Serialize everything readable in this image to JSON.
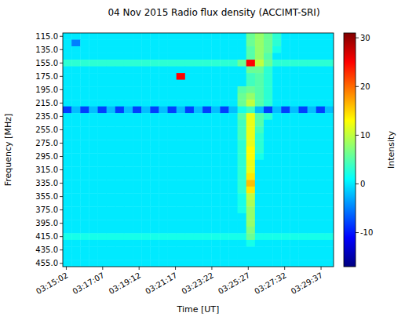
{
  "chart_data": {
    "type": "heatmap",
    "title": "04 Nov 2015 Radio flux density (ACCIMT-SRI)",
    "x_label": "Time [UT]",
    "y_label": "Frequency [MHz]",
    "xlim": [
      11690,
      12620
    ],
    "ylim": [
      460,
      110
    ],
    "xticks": [
      {
        "value": 11702,
        "label": "03:15:02"
      },
      {
        "value": 11827,
        "label": "03:17:07"
      },
      {
        "value": 11952,
        "label": "03:19:12"
      },
      {
        "value": 12077,
        "label": "03:21:17"
      },
      {
        "value": 12202,
        "label": "03:23:22"
      },
      {
        "value": 12327,
        "label": "03:25:27"
      },
      {
        "value": 12452,
        "label": "03:27:32"
      },
      {
        "value": 12577,
        "label": "03:29:37"
      }
    ],
    "yticks": [
      {
        "value": 115,
        "label": "115.0"
      },
      {
        "value": 135,
        "label": "135.0"
      },
      {
        "value": 155,
        "label": "155.0"
      },
      {
        "value": 175,
        "label": "175.0"
      },
      {
        "value": 195,
        "label": "195.0"
      },
      {
        "value": 215,
        "label": "215.0"
      },
      {
        "value": 235,
        "label": "235.0"
      },
      {
        "value": 255,
        "label": "255.0"
      },
      {
        "value": 275,
        "label": "275.0"
      },
      {
        "value": 295,
        "label": "295.0"
      },
      {
        "value": 315,
        "label": "315.0"
      },
      {
        "value": 335,
        "label": "335.0"
      },
      {
        "value": 355,
        "label": "355.0"
      },
      {
        "value": 375,
        "label": "375.0"
      },
      {
        "value": 395,
        "label": "395.0"
      },
      {
        "value": 415,
        "label": "415.0"
      },
      {
        "value": 435,
        "label": "435.0"
      },
      {
        "value": 455,
        "label": "455.0"
      }
    ],
    "x_bins": [
      11690,
      11720,
      11750,
      11780,
      11810,
      11840,
      11870,
      11900,
      11930,
      11960,
      11990,
      12020,
      12050,
      12080,
      12110,
      12140,
      12170,
      12200,
      12230,
      12260,
      12290,
      12320,
      12350,
      12380,
      12410,
      12440,
      12470,
      12500,
      12530,
      12560,
      12590,
      12620
    ],
    "y_bins": [
      110,
      120,
      130,
      140,
      150,
      160,
      170,
      180,
      190,
      200,
      210,
      220,
      230,
      240,
      250,
      260,
      270,
      280,
      290,
      300,
      310,
      320,
      330,
      340,
      350,
      360,
      370,
      380,
      390,
      400,
      410,
      420,
      430,
      440,
      450,
      460
    ],
    "z": [
      [
        0,
        0,
        0,
        0,
        0,
        0,
        0,
        0,
        0,
        0,
        0,
        0,
        0,
        0,
        0,
        0,
        0,
        0,
        0,
        0,
        0,
        6,
        8,
        6,
        3,
        0,
        0,
        0,
        0,
        0,
        0
      ],
      [
        0,
        -5,
        0,
        0,
        0,
        0,
        0,
        0,
        0,
        0,
        0,
        0,
        0,
        0,
        0,
        0,
        0,
        0,
        0,
        0,
        0,
        6,
        8,
        6,
        3,
        0,
        0,
        0,
        0,
        0,
        0
      ],
      [
        0,
        0,
        0,
        0,
        0,
        0,
        0,
        0,
        0,
        0,
        0,
        0,
        0,
        0,
        0,
        0,
        0,
        0,
        0,
        0,
        0,
        5,
        8,
        6,
        2,
        0,
        0,
        0,
        0,
        0,
        0
      ],
      [
        0,
        0,
        0,
        0,
        0,
        0,
        0,
        0,
        0,
        0,
        0,
        0,
        0,
        0,
        0,
        0,
        0,
        0,
        0,
        0,
        0,
        5,
        8,
        5,
        0,
        0,
        0,
        0,
        0,
        0,
        0
      ],
      [
        3,
        3,
        3,
        3,
        3,
        3,
        3,
        3,
        3,
        3,
        3,
        3,
        3,
        3,
        3,
        3,
        3,
        3,
        3,
        3,
        6,
        25,
        10,
        6,
        3,
        3,
        3,
        3,
        3,
        3,
        3
      ],
      [
        0,
        0,
        0,
        0,
        0,
        0,
        0,
        0,
        0,
        0,
        0,
        0,
        0,
        0,
        0,
        0,
        0,
        0,
        0,
        0,
        0,
        6,
        6,
        3,
        0,
        0,
        0,
        0,
        0,
        0,
        0
      ],
      [
        0,
        0,
        0,
        0,
        0,
        0,
        0,
        0,
        0,
        0,
        0,
        0,
        0,
        25,
        0,
        0,
        0,
        0,
        0,
        0,
        0,
        4,
        5,
        3,
        0,
        0,
        0,
        0,
        0,
        0,
        0
      ],
      [
        0,
        0,
        0,
        0,
        0,
        0,
        0,
        0,
        0,
        0,
        0,
        0,
        0,
        0,
        0,
        0,
        0,
        0,
        0,
        0,
        0,
        4,
        5,
        3,
        0,
        0,
        0,
        0,
        0,
        0,
        0
      ],
      [
        0,
        0,
        0,
        0,
        0,
        0,
        0,
        0,
        0,
        0,
        0,
        0,
        0,
        0,
        0,
        0,
        0,
        0,
        0,
        0,
        5,
        6,
        5,
        3,
        0,
        0,
        0,
        0,
        0,
        0,
        0
      ],
      [
        0,
        0,
        0,
        0,
        0,
        0,
        0,
        0,
        0,
        0,
        0,
        0,
        0,
        0,
        0,
        0,
        0,
        0,
        0,
        0,
        6,
        8,
        5,
        3,
        0,
        0,
        0,
        0,
        0,
        0,
        0
      ],
      [
        0,
        0,
        0,
        0,
        0,
        0,
        0,
        0,
        0,
        0,
        0,
        0,
        0,
        0,
        0,
        0,
        0,
        0,
        0,
        0,
        6,
        10,
        5,
        3,
        0,
        0,
        0,
        0,
        0,
        0,
        0
      ],
      [
        -8,
        -2,
        -8,
        -2,
        -8,
        -2,
        -8,
        -2,
        -8,
        -2,
        -8,
        -2,
        -8,
        -2,
        -8,
        -2,
        -8,
        -2,
        -8,
        -2,
        2,
        4,
        -2,
        -8,
        -2,
        -8,
        -2,
        -8,
        -2,
        -8,
        -2
      ],
      [
        0,
        0,
        0,
        0,
        0,
        0,
        0,
        0,
        0,
        0,
        0,
        0,
        0,
        0,
        0,
        0,
        0,
        0,
        0,
        0,
        5,
        12,
        5,
        3,
        0,
        0,
        0,
        0,
        0,
        0,
        0
      ],
      [
        0,
        0,
        0,
        0,
        0,
        0,
        0,
        0,
        0,
        0,
        0,
        0,
        0,
        0,
        0,
        0,
        0,
        0,
        0,
        0,
        4,
        12,
        5,
        0,
        0,
        0,
        0,
        0,
        0,
        0,
        0
      ],
      [
        0,
        0,
        0,
        0,
        0,
        0,
        0,
        0,
        0,
        0,
        0,
        0,
        0,
        0,
        0,
        0,
        0,
        0,
        0,
        0,
        4,
        12,
        4,
        0,
        0,
        0,
        0,
        0,
        0,
        0,
        0
      ],
      [
        0,
        0,
        0,
        0,
        0,
        0,
        0,
        0,
        0,
        0,
        0,
        0,
        0,
        0,
        0,
        0,
        0,
        0,
        0,
        0,
        4,
        12,
        3,
        0,
        0,
        0,
        0,
        0,
        0,
        0,
        0
      ],
      [
        0,
        0,
        0,
        0,
        0,
        0,
        0,
        0,
        0,
        0,
        0,
        0,
        0,
        0,
        0,
        0,
        0,
        0,
        0,
        0,
        3,
        12,
        3,
        0,
        0,
        0,
        0,
        0,
        0,
        0,
        0
      ],
      [
        0,
        0,
        0,
        0,
        0,
        0,
        0,
        0,
        0,
        0,
        0,
        0,
        0,
        0,
        0,
        0,
        0,
        0,
        0,
        0,
        3,
        13,
        3,
        0,
        0,
        0,
        0,
        0,
        0,
        0,
        0
      ],
      [
        0,
        0,
        0,
        0,
        0,
        0,
        0,
        0,
        0,
        0,
        0,
        0,
        0,
        0,
        0,
        0,
        0,
        0,
        0,
        0,
        3,
        13,
        2,
        0,
        0,
        0,
        0,
        0,
        0,
        0,
        0
      ],
      [
        0,
        0,
        0,
        0,
        0,
        0,
        0,
        0,
        0,
        0,
        0,
        0,
        0,
        0,
        0,
        0,
        0,
        0,
        0,
        0,
        3,
        12,
        0,
        0,
        0,
        0,
        0,
        0,
        0,
        0,
        0
      ],
      [
        0,
        0,
        0,
        0,
        0,
        0,
        0,
        0,
        0,
        0,
        0,
        0,
        0,
        0,
        0,
        0,
        0,
        0,
        0,
        0,
        3,
        12,
        0,
        0,
        0,
        0,
        0,
        0,
        0,
        0,
        0
      ],
      [
        0,
        0,
        0,
        0,
        0,
        0,
        0,
        0,
        0,
        0,
        0,
        0,
        0,
        0,
        0,
        0,
        0,
        0,
        0,
        0,
        3,
        14,
        0,
        0,
        0,
        0,
        0,
        0,
        0,
        0,
        0
      ],
      [
        0,
        0,
        0,
        0,
        0,
        0,
        0,
        0,
        0,
        0,
        0,
        0,
        0,
        0,
        0,
        0,
        0,
        0,
        0,
        0,
        3,
        16,
        0,
        0,
        0,
        0,
        0,
        0,
        0,
        0,
        0
      ],
      [
        0,
        0,
        0,
        0,
        0,
        0,
        0,
        0,
        0,
        0,
        0,
        0,
        0,
        0,
        0,
        0,
        0,
        0,
        0,
        0,
        3,
        14,
        0,
        0,
        0,
        0,
        0,
        0,
        0,
        0,
        0
      ],
      [
        0,
        0,
        0,
        0,
        0,
        0,
        0,
        0,
        0,
        0,
        0,
        0,
        0,
        0,
        0,
        0,
        0,
        0,
        0,
        0,
        2,
        10,
        0,
        0,
        0,
        0,
        0,
        0,
        0,
        0,
        0
      ],
      [
        0,
        0,
        0,
        0,
        0,
        0,
        0,
        0,
        0,
        0,
        0,
        0,
        0,
        0,
        0,
        0,
        0,
        0,
        0,
        0,
        2,
        9,
        0,
        0,
        0,
        0,
        0,
        0,
        0,
        0,
        0
      ],
      [
        0,
        0,
        0,
        0,
        0,
        0,
        0,
        0,
        0,
        0,
        0,
        0,
        0,
        0,
        0,
        0,
        0,
        0,
        0,
        0,
        2,
        8,
        0,
        0,
        0,
        0,
        0,
        0,
        0,
        0,
        0
      ],
      [
        0,
        0,
        0,
        0,
        0,
        0,
        0,
        0,
        0,
        0,
        0,
        0,
        0,
        0,
        0,
        0,
        0,
        0,
        0,
        0,
        0,
        8,
        0,
        0,
        0,
        0,
        0,
        0,
        0,
        0,
        0
      ],
      [
        0,
        0,
        0,
        0,
        0,
        0,
        0,
        0,
        0,
        0,
        0,
        0,
        0,
        0,
        0,
        0,
        0,
        0,
        0,
        0,
        0,
        8,
        0,
        0,
        0,
        0,
        0,
        0,
        0,
        0,
        0
      ],
      [
        0,
        0,
        0,
        0,
        0,
        0,
        0,
        0,
        0,
        0,
        0,
        0,
        0,
        0,
        0,
        0,
        0,
        0,
        0,
        0,
        0,
        7,
        0,
        0,
        0,
        0,
        0,
        0,
        0,
        0,
        0
      ],
      [
        2,
        2,
        2,
        2,
        2,
        2,
        2,
        2,
        2,
        2,
        2,
        2,
        2,
        2,
        2,
        2,
        2,
        2,
        2,
        2,
        2,
        6,
        2,
        2,
        2,
        2,
        2,
        2,
        2,
        2,
        2
      ],
      [
        0,
        0,
        0,
        0,
        0,
        0,
        0,
        0,
        0,
        0,
        0,
        0,
        0,
        0,
        0,
        0,
        0,
        0,
        0,
        0,
        0,
        2,
        0,
        0,
        0,
        0,
        0,
        0,
        0,
        0,
        0
      ],
      [
        0,
        0,
        0,
        0,
        0,
        0,
        0,
        0,
        0,
        0,
        0,
        0,
        0,
        0,
        0,
        0,
        0,
        0,
        0,
        0,
        0,
        0,
        0,
        0,
        0,
        0,
        0,
        0,
        0,
        0,
        0
      ],
      [
        0,
        0,
        0,
        0,
        0,
        0,
        0,
        0,
        0,
        0,
        0,
        0,
        0,
        0,
        0,
        0,
        0,
        0,
        0,
        0,
        0,
        0,
        0,
        0,
        0,
        0,
        0,
        0,
        0,
        0,
        0
      ],
      [
        0,
        0,
        0,
        0,
        0,
        0,
        0,
        0,
        0,
        0,
        0,
        0,
        0,
        0,
        0,
        0,
        0,
        0,
        0,
        0,
        0,
        0,
        0,
        0,
        0,
        0,
        0,
        0,
        0,
        0,
        0
      ]
    ],
    "colorbar": {
      "range": [
        -17,
        31
      ],
      "ticks": [
        -10,
        0,
        10,
        20,
        30
      ],
      "label": "Intensity"
    }
  }
}
